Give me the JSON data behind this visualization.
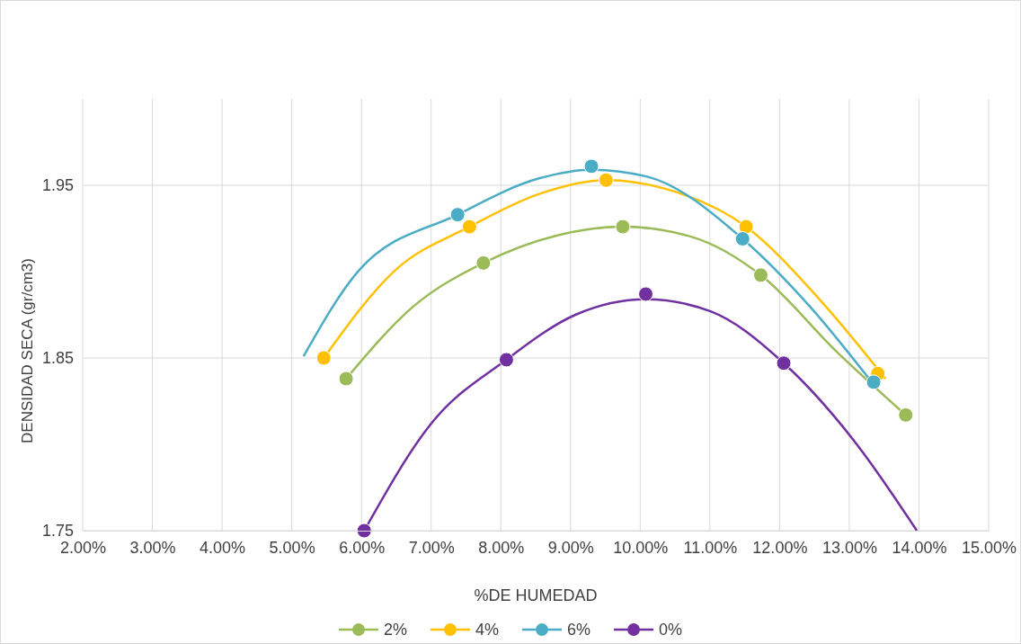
{
  "chart_data": {
    "type": "scatter",
    "xlabel": "%DE HUMEDAD",
    "ylabel": "DENSIDAD SECA (gr/cm3)",
    "xlim": [
      2,
      15
    ],
    "xticks": [
      {
        "value": 2,
        "label": "2.00%"
      },
      {
        "value": 3,
        "label": "3.00%"
      },
      {
        "value": 4,
        "label": "4.00%"
      },
      {
        "value": 5,
        "label": "5.00%"
      },
      {
        "value": 6,
        "label": "6.00%"
      },
      {
        "value": 7,
        "label": "7.00%"
      },
      {
        "value": 8,
        "label": "8.00%"
      },
      {
        "value": 9,
        "label": "9.00%"
      },
      {
        "value": 10,
        "label": "10.00%"
      },
      {
        "value": 11,
        "label": "11.00%"
      },
      {
        "value": 12,
        "label": "12.00%"
      },
      {
        "value": 13,
        "label": "13.00%"
      },
      {
        "value": 14,
        "label": "14.00%"
      },
      {
        "value": 15,
        "label": "15.00%"
      }
    ],
    "ylim": [
      1.75,
      2.0
    ],
    "yticks": [
      1.75,
      1.85,
      1.95
    ],
    "grid": true,
    "legend": "bottom",
    "marker": "circle",
    "series": [
      {
        "type": "line",
        "marker": "none",
        "color": "#9bbb59",
        "x": [
          5.78,
          6.75,
          7.75,
          8.81,
          9.75,
          10.75,
          11.73,
          12.81,
          13.81
        ],
        "values": [
          1.838,
          1.88,
          1.905,
          1.921,
          1.926,
          1.92,
          1.898,
          1.854,
          1.817
        ]
      },
      {
        "type": "line",
        "marker": "none",
        "color": "#ffc000",
        "x": [
          5.46,
          6.49,
          7.55,
          8.55,
          9.51,
          10.36,
          11.52,
          12.55,
          13.52
        ],
        "values": [
          1.85,
          1.901,
          1.926,
          1.945,
          1.953,
          1.948,
          1.926,
          1.885,
          1.838
        ]
      },
      {
        "type": "line",
        "marker": "none",
        "color": "#4bacc6",
        "x": [
          5.17,
          5.97,
          7.38,
          8.55,
          9.3,
          10.1,
          11.47,
          12.43,
          13.4
        ],
        "values": [
          1.851,
          1.901,
          1.933,
          1.954,
          1.959,
          1.955,
          1.919,
          1.88,
          1.832
        ]
      },
      {
        "type": "line",
        "marker": "none",
        "color": "#7030a0",
        "x": [
          6.04,
          7.0,
          8.08,
          9.07,
          10.08,
          11.01,
          12.06,
          13.07,
          13.97
        ],
        "values": [
          1.75,
          1.812,
          1.849,
          1.875,
          1.884,
          1.877,
          1.847,
          1.802,
          1.75
        ]
      },
      {
        "name": "2%",
        "color": "#9bbb59",
        "x": [
          5.78,
          7.75,
          9.75,
          11.73,
          13.81
        ],
        "values": [
          1.838,
          1.905,
          1.926,
          1.898,
          1.817
        ]
      },
      {
        "name": "4%",
        "color": "#ffc000",
        "x": [
          5.46,
          7.55,
          9.51,
          11.52,
          13.41
        ],
        "values": [
          1.85,
          1.926,
          1.953,
          1.926,
          1.841
        ]
      },
      {
        "name": "6%",
        "color": "#4bacc6",
        "x": [
          7.38,
          9.3,
          11.47,
          13.35
        ],
        "values": [
          1.933,
          1.961,
          1.919,
          1.836
        ]
      },
      {
        "name": "0%",
        "color": "#7030a0",
        "x": [
          6.04,
          8.08,
          10.08,
          12.06
        ],
        "values": [
          1.75,
          1.849,
          1.887,
          1.847
        ]
      }
    ]
  }
}
